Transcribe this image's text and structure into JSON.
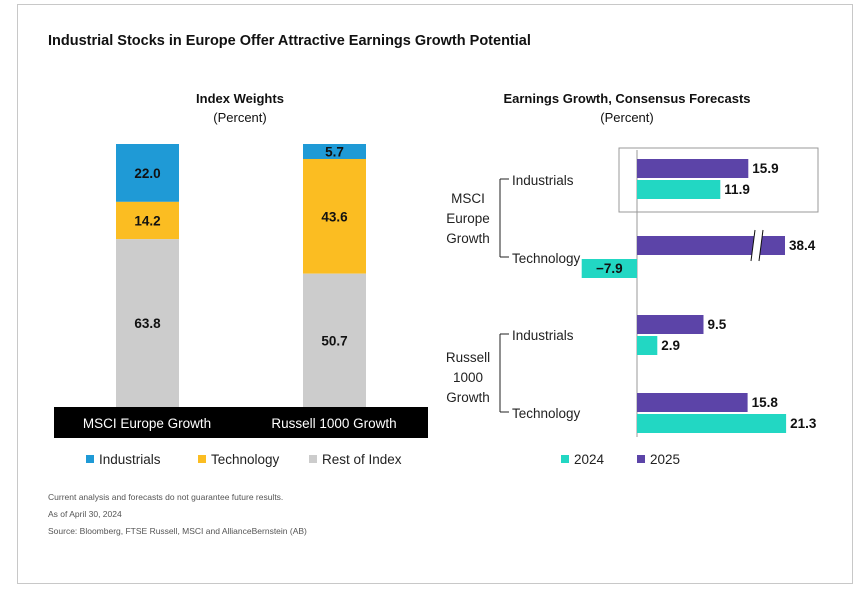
{
  "title": "Industrial Stocks in Europe Offer Attractive Earnings Growth Potential",
  "colors": {
    "industrials": "#1f9ad6",
    "technology": "#fbbd22",
    "rest": "#cccccc",
    "y2024": "#22d7c3",
    "y2025": "#5c44a8",
    "labelbar": "#000000"
  },
  "chart_data": [
    {
      "type": "bar",
      "stacked": true,
      "title": "Index Weights",
      "subtitle": "(Percent)",
      "categories": [
        "MSCI Europe Growth",
        "Russell 1000 Growth"
      ],
      "series": [
        {
          "name": "Industrials",
          "values": [
            22.0,
            5.7
          ],
          "labels": [
            "22.0",
            "5.7"
          ]
        },
        {
          "name": "Technology",
          "values": [
            14.2,
            43.6
          ],
          "labels": [
            "14.2",
            "43.6"
          ]
        },
        {
          "name": "Rest of Index",
          "values": [
            63.8,
            50.7
          ],
          "labels": [
            "63.8",
            "50.7"
          ]
        }
      ],
      "legend": {
        "position": "bottom",
        "items": [
          "Industrials",
          "Technology",
          "Rest of Index"
        ]
      }
    },
    {
      "type": "bar",
      "orientation": "horizontal",
      "title": "Earnings Growth, Consensus Forecasts",
      "subtitle": "(Percent)",
      "groups": [
        {
          "label": "MSCI Europe Growth",
          "label_lines": [
            "MSCI",
            "Europe",
            "Growth"
          ],
          "items": [
            {
              "label": "Industrials",
              "y2025": 15.9,
              "y2024": 11.9,
              "labels": [
                "15.9",
                "11.9"
              ],
              "highlighted": true
            },
            {
              "label": "Technology",
              "y2025": 38.4,
              "y2024": -7.9,
              "labels": [
                "38.4",
                "−7.9"
              ],
              "axis_break": true
            }
          ]
        },
        {
          "label": "Russell 1000 Growth",
          "label_lines": [
            "Russell",
            "1000",
            "Growth"
          ],
          "items": [
            {
              "label": "Industrials",
              "y2025": 9.5,
              "y2024": 2.9,
              "labels": [
                "9.5",
                "2.9"
              ]
            },
            {
              "label": "Technology",
              "y2025": 15.8,
              "y2024": 21.3,
              "labels": [
                "15.8",
                "21.3"
              ]
            }
          ]
        }
      ],
      "series": [
        {
          "name": "2024"
        },
        {
          "name": "2025"
        }
      ],
      "legend": {
        "position": "bottom",
        "items": [
          "2024",
          "2025"
        ]
      }
    }
  ],
  "footnotes": [
    "Current analysis and forecasts do not guarantee future results.",
    "As of April 30, 2024",
    "Source: Bloomberg, FTSE Russell, MSCI and AllianceBernstein (AB)"
  ]
}
